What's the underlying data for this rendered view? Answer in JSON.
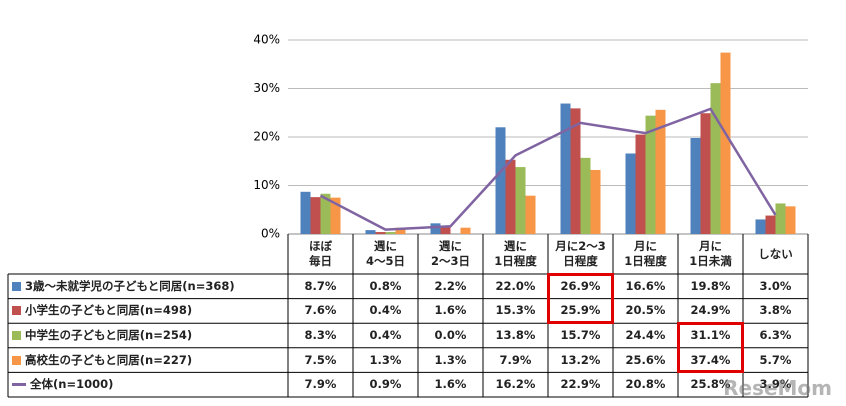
{
  "chart_data": {
    "type": "bar",
    "categories": [
      "ほぼ\n毎日",
      "週に\n4〜5日",
      "週に\n2〜3日",
      "週に\n1日程度",
      "月に2〜3\n日程度",
      "月に\n1日程度",
      "月に\n1日未満",
      "しない"
    ],
    "ylim": [
      0,
      40
    ],
    "yticks": [
      {
        "value": 0,
        "label": "0%"
      },
      {
        "value": 10,
        "label": "10%"
      },
      {
        "value": 20,
        "label": "20%"
      },
      {
        "value": 30,
        "label": "30%"
      },
      {
        "value": 40,
        "label": "40%"
      }
    ],
    "grid": true,
    "series": [
      {
        "name": "3歳～未就学児の子どもと同居(n=368)",
        "type": "bar",
        "color": "#4f81bd",
        "values": [
          8.7,
          0.8,
          2.2,
          22.0,
          26.9,
          16.6,
          19.8,
          3.0
        ],
        "value_labels": [
          "8.7%",
          "0.8%",
          "2.2%",
          "22.0%",
          "26.9%",
          "16.6%",
          "19.8%",
          "3.0%"
        ]
      },
      {
        "name": "小学生の子どもと同居(n=498)",
        "type": "bar",
        "color": "#c0504d",
        "values": [
          7.6,
          0.4,
          1.6,
          15.3,
          25.9,
          20.5,
          24.9,
          3.8
        ],
        "value_labels": [
          "7.6%",
          "0.4%",
          "1.6%",
          "15.3%",
          "25.9%",
          "20.5%",
          "24.9%",
          "3.8%"
        ]
      },
      {
        "name": "中学生の子どもと同居(n=254)",
        "type": "bar",
        "color": "#9bbb59",
        "values": [
          8.3,
          0.4,
          0.0,
          13.8,
          15.7,
          24.4,
          31.1,
          6.3
        ],
        "value_labels": [
          "8.3%",
          "0.4%",
          "0.0%",
          "13.8%",
          "15.7%",
          "24.4%",
          "31.1%",
          "6.3%"
        ]
      },
      {
        "name": "高校生の子どもと同居(n=227)",
        "type": "bar",
        "color": "#f79646",
        "values": [
          7.5,
          1.3,
          1.3,
          7.9,
          13.2,
          25.6,
          37.4,
          5.7
        ],
        "value_labels": [
          "7.5%",
          "1.3%",
          "1.3%",
          "7.9%",
          "13.2%",
          "25.6%",
          "37.4%",
          "5.7%"
        ]
      },
      {
        "name": "全体(n=1000)",
        "type": "line",
        "color": "#8064a2",
        "values": [
          7.9,
          0.9,
          1.6,
          16.2,
          22.9,
          20.8,
          25.8,
          3.9
        ],
        "value_labels": [
          "7.9%",
          "0.9%",
          "1.6%",
          "16.2%",
          "22.9%",
          "20.8%",
          "25.8%",
          "3.9%"
        ]
      }
    ],
    "watermark": "ReseMom"
  }
}
